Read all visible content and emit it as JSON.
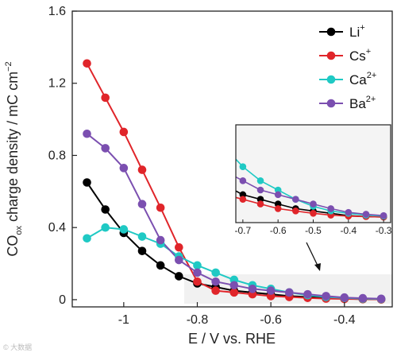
{
  "chart_data": {
    "type": "line",
    "xlabel": "E / V vs. RHE",
    "ylabel": {
      "prefix": "CO",
      "sub": "ox",
      "middle": " charge density / mC cm",
      "sup": "−2"
    },
    "xlim": [
      -1.14,
      -0.27
    ],
    "ylim": [
      -0.04,
      1.6
    ],
    "x_ticks": [
      {
        "v": -1.0,
        "label": "-1"
      },
      {
        "v": -0.8,
        "label": "-0.8"
      },
      {
        "v": -0.6,
        "label": "-0.6"
      },
      {
        "v": -0.4,
        "label": "-0.4"
      }
    ],
    "y_ticks": [
      {
        "v": 0,
        "label": "0"
      },
      {
        "v": 0.4,
        "label": "0.4"
      },
      {
        "v": 0.8,
        "label": "0.8"
      },
      {
        "v": 1.2,
        "label": "1.2"
      },
      {
        "v": 1.6,
        "label": "1.6"
      }
    ],
    "x": [
      -1.1,
      -1.05,
      -1.0,
      -0.95,
      -0.9,
      -0.85,
      -0.8,
      -0.75,
      -0.7,
      -0.65,
      -0.6,
      -0.55,
      -0.5,
      -0.45,
      -0.4,
      -0.35,
      -0.3
    ],
    "series": [
      {
        "name": "Li",
        "charge": "+",
        "color": "#000000",
        "values": [
          0.65,
          0.5,
          0.37,
          0.27,
          0.19,
          0.13,
          0.09,
          0.07,
          0.05,
          0.04,
          0.03,
          0.02,
          0.015,
          0.01,
          0.005,
          0.003,
          0.002
        ]
      },
      {
        "name": "Cs",
        "charge": "+",
        "color": "#e0252a",
        "values": [
          1.31,
          1.12,
          0.93,
          0.72,
          0.51,
          0.29,
          0.1,
          0.05,
          0.04,
          0.03,
          0.02,
          0.015,
          0.01,
          0.006,
          0.004,
          0.003,
          0.002
        ]
      },
      {
        "name": "Ca",
        "charge": "2+",
        "color": "#1fc9c4",
        "values": [
          0.34,
          0.4,
          0.39,
          0.35,
          0.31,
          0.24,
          0.19,
          0.15,
          0.11,
          0.08,
          0.06,
          0.04,
          0.025,
          0.015,
          0.01,
          0.006,
          0.004
        ]
      },
      {
        "name": "Ba",
        "charge": "2+",
        "color": "#7b4fb0",
        "values": [
          0.92,
          0.84,
          0.73,
          0.53,
          0.33,
          0.22,
          0.15,
          0.1,
          0.08,
          0.06,
          0.05,
          0.04,
          0.03,
          0.02,
          0.012,
          0.008,
          0.005
        ]
      }
    ],
    "legend_position": "top-right",
    "inset": {
      "xlim": [
        -0.72,
        -0.28
      ],
      "ylim": [
        -0.01,
        0.2
      ],
      "x_ticks": [
        {
          "v": -0.7,
          "label": "-0.7"
        },
        {
          "v": -0.6,
          "label": "-0.6"
        },
        {
          "v": -0.5,
          "label": "-0.5"
        },
        {
          "v": -0.4,
          "label": "-0.4"
        },
        {
          "v": -0.3,
          "label": "-0.3"
        }
      ]
    }
  },
  "watermark": "© 大数据"
}
